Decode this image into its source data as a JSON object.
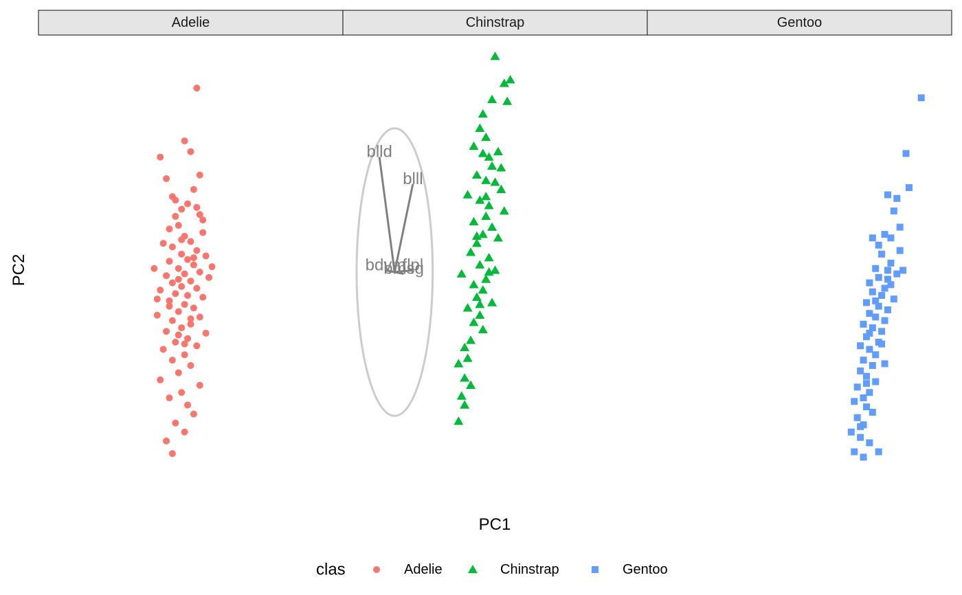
{
  "chart_data": {
    "type": "scatter",
    "facets": [
      "Adelie",
      "Chinstrap",
      "Gentoo"
    ],
    "xlabel": "PC1",
    "ylabel": "PC2",
    "legend": {
      "title": "clas",
      "position": "bottom",
      "entries": [
        {
          "label": "Adelie",
          "shape": "circle",
          "color": "#F8766D"
        },
        {
          "label": "Chinstrap",
          "shape": "triangle",
          "color": "#00BA38"
        },
        {
          "label": "Gentoo",
          "shape": "square",
          "color": "#619CFF"
        }
      ]
    },
    "grid": false,
    "axis_ticks": false,
    "series": [
      {
        "name": "Adelie",
        "facet": 0,
        "shape": "circle",
        "color": "#F8766D",
        "points": [
          [
            0.52,
            5.12
          ],
          [
            0.4,
            3.2
          ],
          [
            0.48,
            3.65
          ],
          [
            0.5,
            3.35
          ],
          [
            0.42,
            2.6
          ],
          [
            0.44,
            2.1
          ],
          [
            0.51,
            2.3
          ],
          [
            0.45,
            2.0
          ],
          [
            0.49,
            1.9
          ],
          [
            0.47,
            1.75
          ],
          [
            0.53,
            1.6
          ],
          [
            0.54,
            1.1
          ],
          [
            0.46,
            1.3
          ],
          [
            0.43,
            1.2
          ],
          [
            0.48,
            1.0
          ],
          [
            0.5,
            0.85
          ],
          [
            0.41,
            0.8
          ],
          [
            0.44,
            0.7
          ],
          [
            0.52,
            0.6
          ],
          [
            0.47,
            0.5
          ],
          [
            0.55,
            0.45
          ],
          [
            0.49,
            0.35
          ],
          [
            0.43,
            0.3
          ],
          [
            0.51,
            0.2
          ],
          [
            0.46,
            0.1
          ],
          [
            0.38,
            0.1
          ],
          [
            0.53,
            0.0
          ],
          [
            0.48,
            -0.05
          ],
          [
            0.42,
            -0.1
          ],
          [
            0.56,
            -0.15
          ],
          [
            0.5,
            -0.25
          ],
          [
            0.44,
            -0.3
          ],
          [
            0.47,
            -0.4
          ],
          [
            0.52,
            -0.45
          ],
          [
            0.4,
            -0.5
          ],
          [
            0.45,
            -0.6
          ],
          [
            0.49,
            -0.65
          ],
          [
            0.54,
            -0.7
          ],
          [
            0.43,
            -0.8
          ],
          [
            0.48,
            -0.9
          ],
          [
            0.51,
            -1.0
          ],
          [
            0.46,
            -1.1
          ],
          [
            0.39,
            -1.2
          ],
          [
            0.53,
            -1.25
          ],
          [
            0.44,
            -1.35
          ],
          [
            0.5,
            -1.45
          ],
          [
            0.47,
            -1.55
          ],
          [
            0.42,
            -1.65
          ],
          [
            0.55,
            -1.7
          ],
          [
            0.49,
            -1.85
          ],
          [
            0.45,
            -1.95
          ],
          [
            0.52,
            -2.05
          ],
          [
            0.41,
            -2.15
          ],
          [
            0.48,
            -2.3
          ],
          [
            0.44,
            -2.45
          ],
          [
            0.5,
            -2.6
          ],
          [
            0.46,
            -2.8
          ],
          [
            0.4,
            -3.0
          ],
          [
            0.53,
            -3.15
          ],
          [
            0.47,
            -3.35
          ],
          [
            0.43,
            -3.5
          ],
          [
            0.49,
            -3.7
          ],
          [
            0.51,
            -3.95
          ],
          [
            0.45,
            -4.2
          ],
          [
            0.48,
            -4.45
          ],
          [
            0.42,
            -4.7
          ],
          [
            0.44,
            -5.05
          ],
          [
            0.54,
            1.45
          ],
          [
            0.57,
            0.15
          ],
          [
            0.46,
            -0.2
          ],
          [
            0.39,
            -0.75
          ],
          [
            0.5,
            -1.3
          ],
          [
            0.47,
            0.9
          ],
          [
            0.53,
            2.7
          ],
          [
            0.45,
            1.55
          ],
          [
            0.51,
            0.4
          ],
          [
            0.43,
            -0.95
          ],
          [
            0.48,
            -2.0
          ],
          [
            0.52,
            1.8
          ],
          [
            0.46,
            -1.75
          ]
        ]
      },
      {
        "name": "Chinstrap",
        "facet": 1,
        "shape": "triangle",
        "color": "#00BA38",
        "points": [
          [
            0.5,
            6.0
          ],
          [
            0.55,
            5.35
          ],
          [
            0.53,
            5.25
          ],
          [
            0.49,
            4.8
          ],
          [
            0.54,
            4.75
          ],
          [
            0.46,
            4.4
          ],
          [
            0.45,
            4.0
          ],
          [
            0.47,
            3.75
          ],
          [
            0.43,
            3.5
          ],
          [
            0.46,
            3.3
          ],
          [
            0.48,
            3.2
          ],
          [
            0.51,
            3.35
          ],
          [
            0.49,
            2.95
          ],
          [
            0.44,
            2.7
          ],
          [
            0.47,
            2.55
          ],
          [
            0.5,
            2.5
          ],
          [
            0.52,
            2.3
          ],
          [
            0.41,
            2.15
          ],
          [
            0.45,
            2.0
          ],
          [
            0.48,
            1.85
          ],
          [
            0.53,
            1.7
          ],
          [
            0.47,
            1.55
          ],
          [
            0.43,
            1.4
          ],
          [
            0.49,
            1.25
          ],
          [
            0.46,
            1.05
          ],
          [
            0.51,
            0.95
          ],
          [
            0.44,
            0.8
          ],
          [
            0.42,
            0.55
          ],
          [
            0.48,
            0.4
          ],
          [
            0.45,
            0.2
          ],
          [
            0.5,
            0.05
          ],
          [
            0.39,
            -0.05
          ],
          [
            0.47,
            -0.2
          ],
          [
            0.43,
            -0.35
          ],
          [
            0.46,
            -0.5
          ],
          [
            0.44,
            -0.7
          ],
          [
            0.49,
            -0.85
          ],
          [
            0.41,
            -1.0
          ],
          [
            0.45,
            -1.2
          ],
          [
            0.43,
            -1.4
          ],
          [
            0.46,
            -1.6
          ],
          [
            0.42,
            -1.9
          ],
          [
            0.4,
            -2.1
          ],
          [
            0.41,
            -2.4
          ],
          [
            0.38,
            -2.55
          ],
          [
            0.4,
            -2.95
          ],
          [
            0.42,
            -3.15
          ],
          [
            0.39,
            -3.45
          ],
          [
            0.4,
            -3.7
          ],
          [
            0.38,
            -4.15
          ],
          [
            0.52,
            2.9
          ],
          [
            0.47,
            2.1
          ],
          [
            0.44,
            1.0
          ],
          [
            0.48,
            0.0
          ],
          [
            0.45,
            -0.9
          ]
        ]
      },
      {
        "name": "Gentoo",
        "facet": 2,
        "shape": "square",
        "color": "#619CFF",
        "points": [
          [
            0.9,
            4.85
          ],
          [
            0.85,
            3.3
          ],
          [
            0.82,
            2.05
          ],
          [
            0.79,
            2.15
          ],
          [
            0.81,
            1.7
          ],
          [
            0.78,
            1.05
          ],
          [
            0.74,
            0.95
          ],
          [
            0.8,
            0.95
          ],
          [
            0.83,
            0.6
          ],
          [
            0.8,
            0.25
          ],
          [
            0.77,
            0.5
          ],
          [
            0.75,
            0.1
          ],
          [
            0.79,
            0.05
          ],
          [
            0.82,
            -0.05
          ],
          [
            0.76,
            -0.15
          ],
          [
            0.73,
            -0.3
          ],
          [
            0.8,
            -0.35
          ],
          [
            0.78,
            -0.45
          ],
          [
            0.74,
            -0.55
          ],
          [
            0.77,
            -0.65
          ],
          [
            0.81,
            -0.75
          ],
          [
            0.72,
            -0.85
          ],
          [
            0.76,
            -0.95
          ],
          [
            0.79,
            -1.05
          ],
          [
            0.73,
            -1.15
          ],
          [
            0.75,
            -1.25
          ],
          [
            0.78,
            -1.35
          ],
          [
            0.71,
            -1.45
          ],
          [
            0.74,
            -1.55
          ],
          [
            0.77,
            -1.65
          ],
          [
            0.72,
            -1.8
          ],
          [
            0.76,
            -1.95
          ],
          [
            0.7,
            -2.05
          ],
          [
            0.73,
            -2.15
          ],
          [
            0.75,
            -2.3
          ],
          [
            0.71,
            -2.45
          ],
          [
            0.74,
            -2.6
          ],
          [
            0.7,
            -2.75
          ],
          [
            0.72,
            -2.9
          ],
          [
            0.75,
            -3.05
          ],
          [
            0.69,
            -3.2
          ],
          [
            0.73,
            -3.35
          ],
          [
            0.71,
            -3.5
          ],
          [
            0.68,
            -3.6
          ],
          [
            0.72,
            -3.75
          ],
          [
            0.74,
            -3.9
          ],
          [
            0.69,
            -4.05
          ],
          [
            0.71,
            -4.25
          ],
          [
            0.67,
            -4.45
          ],
          [
            0.7,
            -4.6
          ],
          [
            0.73,
            -4.75
          ],
          [
            0.68,
            -5.0
          ],
          [
            0.71,
            -5.15
          ],
          [
            0.76,
            -5.0
          ],
          [
            0.83,
            1.25
          ],
          [
            0.79,
            -0.2
          ],
          [
            0.75,
            -0.8
          ],
          [
            0.77,
            -2.0
          ],
          [
            0.72,
            -3.1
          ],
          [
            0.7,
            -4.3
          ],
          [
            0.84,
            0.05
          ],
          [
            0.76,
            0.75
          ],
          [
            0.73,
            -1.7
          ],
          [
            0.78,
            -2.55
          ],
          [
            0.86,
            2.35
          ]
        ]
      }
    ],
    "biplot": {
      "facet": 1,
      "circle": {
        "cx": 0.17,
        "cy": 0.0,
        "rx": 0.125,
        "ry": 4.0
      },
      "arrows": [
        {
          "label": "blld",
          "x": 0.12,
          "y": 3.2
        },
        {
          "label": "blll",
          "x": 0.23,
          "y": 2.45
        },
        {
          "label": "bdvm",
          "x": 0.14,
          "y": 0.05
        },
        {
          "label": "flpl",
          "x": 0.23,
          "y": 0.05
        },
        {
          "label": "bmsg",
          "x": 0.2,
          "y": -0.05
        }
      ]
    },
    "xlim": [
      0,
      1
    ],
    "ylim": [
      -6.5,
      6.5
    ]
  }
}
